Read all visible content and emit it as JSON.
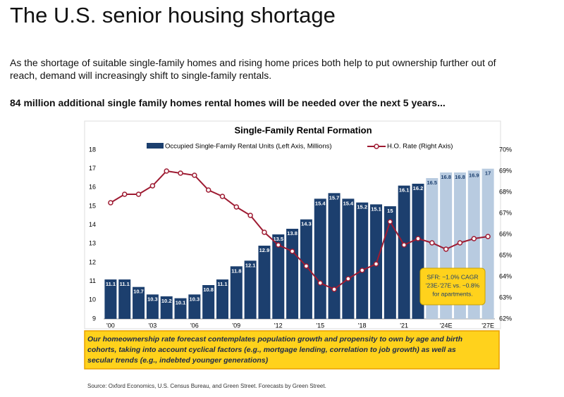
{
  "header": {
    "title": "The U.S. senior housing shortage",
    "paragraph": [
      "As the shortage of suitable single-family homes and rising home prices both help to put ownership further out of",
      "reach, demand will increasingly shift to single-family rentals."
    ],
    "highlight": "84 million additional single family homes rental homes will be needed over the next 5 years..."
  },
  "chart_data": {
    "type": "bar",
    "title": "Single-Family Rental Formation",
    "categories": [
      "'00",
      null,
      null,
      "'03",
      null,
      null,
      "'06",
      null,
      null,
      "'09",
      null,
      null,
      "'12",
      null,
      null,
      "'15",
      null,
      null,
      "'18",
      null,
      null,
      "'21",
      null,
      null,
      "'24E",
      null,
      null,
      "'27E"
    ],
    "series": [
      {
        "name": "Occupied Single-Family Rental Units (Left Axis, Millions)",
        "type": "bar",
        "color": "#1c3f6e",
        "colors": [
          "#1c3f6e",
          "#1c3f6e",
          "#1c3f6e",
          "#1c3f6e",
          "#1c3f6e",
          "#1c3f6e",
          "#1c3f6e",
          "#1c3f6e",
          "#1c3f6e",
          "#1c3f6e",
          "#1c3f6e",
          "#1c3f6e",
          "#1c3f6e",
          "#1c3f6e",
          "#1c3f6e",
          "#1c3f6e",
          "#1c3f6e",
          "#1c3f6e",
          "#1c3f6e",
          "#1c3f6e",
          "#1c3f6e",
          "#1c3f6e",
          "#1c3f6e",
          "#b8cbe0",
          "#b8cbe0",
          "#b8cbe0",
          "#b8cbe0",
          "#b8cbe0"
        ],
        "values": [
          11.1,
          11.1,
          10.7,
          10.3,
          10.2,
          10.1,
          10.3,
          10.8,
          11.1,
          11.8,
          12.1,
          12.9,
          13.5,
          13.8,
          14.3,
          15.4,
          15.7,
          15.4,
          15.2,
          15.1,
          15.0,
          16.1,
          16.2,
          16.5,
          16.8,
          16.8,
          16.9,
          17.0
        ]
      },
      {
        "name": "H.O. Rate (Right Axis)",
        "type": "line",
        "axis": "y2",
        "color": "#9e1b32",
        "values": [
          67.5,
          67.9,
          67.9,
          68.3,
          69.0,
          68.9,
          68.8,
          68.1,
          67.8,
          67.3,
          66.9,
          66.1,
          65.5,
          65.2,
          64.5,
          63.7,
          63.4,
          63.9,
          64.3,
          64.6,
          66.6,
          65.5,
          65.8,
          65.6,
          65.3,
          65.6,
          65.8,
          65.9
        ]
      }
    ],
    "ylim": [
      9,
      18
    ],
    "yticks": [
      9,
      10,
      11,
      12,
      13,
      14,
      15,
      16,
      17,
      18
    ],
    "y2lim": [
      62,
      70
    ],
    "y2ticks": [
      {
        "value": 62,
        "label": "62%"
      },
      {
        "value": 63,
        "label": "63%"
      },
      {
        "value": 64,
        "label": "64%"
      },
      {
        "value": 65,
        "label": "65%"
      },
      {
        "value": 66,
        "label": "66%"
      },
      {
        "value": 67,
        "label": "67%"
      },
      {
        "value": 68,
        "label": "68%"
      },
      {
        "value": 69,
        "label": "69%"
      },
      {
        "value": 70,
        "label": "70%"
      }
    ],
    "annotation": [
      "SFR: ~1.0% CAGR",
      "'23E-'27E vs. ~0.8%",
      "for apartments."
    ],
    "note": [
      "Our homeownership rate forecast contemplates population growth and propensity to own by age and birth",
      "cohorts, taking into account cyclical factors (e.g., mortgage lending, correlation to job growth) as well as",
      "secular trends (e.g., indebted younger generations)"
    ],
    "source": "Source: Oxford Economics, U.S. Census Bureau, and Green Street. Forecasts by Green Street."
  }
}
